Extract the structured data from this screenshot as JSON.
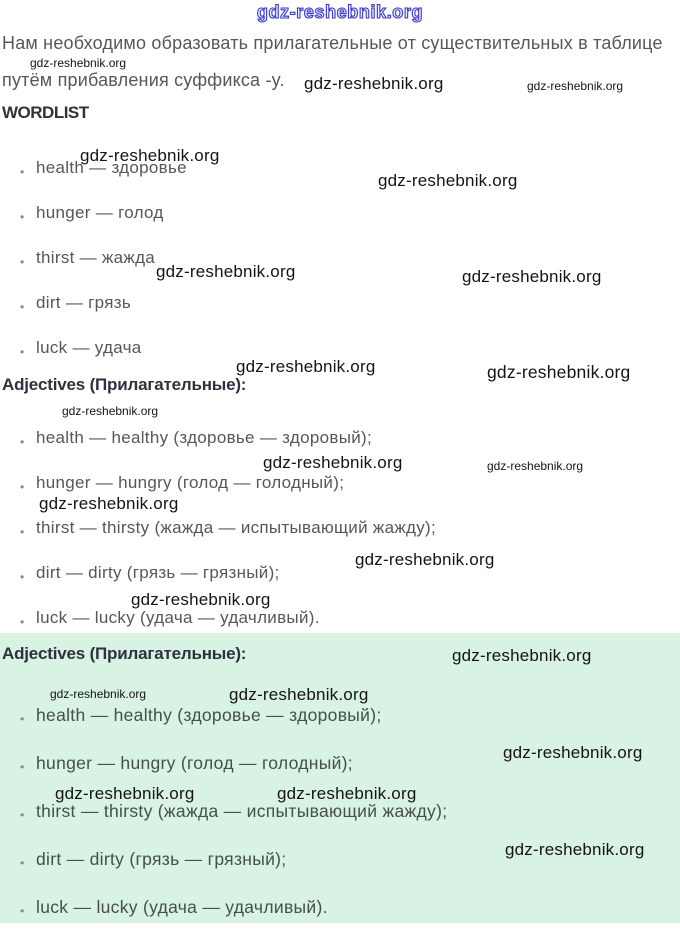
{
  "watermark": {
    "text": "gdz-reshebnik.org"
  },
  "intro": {
    "line1": "Нам необходимо образовать прилагательные от существительных в таблице",
    "line2": "путём прибавления суффикса -y."
  },
  "wordlist": {
    "heading": "WORDLIST",
    "items": [
      "health — здоровье",
      "hunger — голод",
      "thirst — жажда",
      "dirt — грязь",
      "luck — удача"
    ]
  },
  "adjectives": {
    "heading": "Adjectives (Прилагательные):",
    "items": [
      "health — healthy (здоровье — здоровый);",
      "hunger — hungry (голод — голодный);",
      "thirst — thirsty (жажда — испытывающий жажду);",
      "dirt — dirty (грязь — грязный);",
      "luck — lucky (удача — удачливый)."
    ]
  },
  "answer": {
    "heading": "Adjectives (Прилагательные):",
    "items": [
      "health — healthy (здоровье — здоровый);",
      "hunger — hungry (голод — голодный);",
      "thirst — thirsty (жажда — испытывающий жажду);",
      "dirt — dirty (грязь — грязный);",
      "luck — lucky (удача — удачливый)."
    ]
  },
  "colors": {
    "green_bg": "#d8f2e4",
    "body_text": "#54575c",
    "green_text": "#454f4b",
    "heading_text": "#2d323d",
    "wm_black": "#141414",
    "wm_blue": "#3a3ad0"
  }
}
